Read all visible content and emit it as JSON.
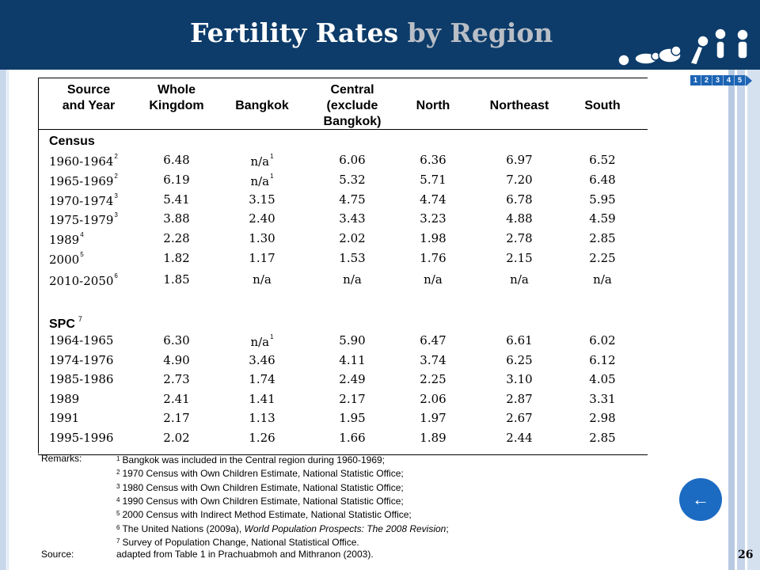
{
  "slide": {
    "title_main": "Fertility Rates",
    "title_sub": "by Region",
    "page_number": "26",
    "steps": [
      "1",
      "2",
      "3",
      "4",
      "5"
    ],
    "back_icon": "←"
  },
  "table": {
    "headers": [
      "Source\nand Year",
      "Whole\nKingdom",
      "Bangkok",
      "Central\n(exclude\nBangkok)",
      "North",
      "Northeast",
      "South"
    ],
    "sections": [
      {
        "label": "Census",
        "rows": [
          {
            "year": "1960-1964",
            "year_note": "2",
            "values": [
              "6.48",
              "n/a",
              "6.06",
              "6.36",
              "6.97",
              "6.52"
            ],
            "bkk_note": "1"
          },
          {
            "year": "1965-1969",
            "year_note": "2",
            "values": [
              "6.19",
              "n/a",
              "5.32",
              "5.71",
              "7.20",
              "6.48"
            ],
            "bkk_note": "1"
          },
          {
            "year": "1970-1974",
            "year_note": "3",
            "values": [
              "5.41",
              "3.15",
              "4.75",
              "4.74",
              "6.78",
              "5.95"
            ],
            "bkk_note": ""
          },
          {
            "year": "1975-1979",
            "year_note": "3",
            "values": [
              "3.88",
              "2.40",
              "3.43",
              "3.23",
              "4.88",
              "4.59"
            ],
            "bkk_note": ""
          },
          {
            "year": "1989",
            "year_note": "4",
            "values": [
              "2.28",
              "1.30",
              "2.02",
              "1.98",
              "2.78",
              "2.85"
            ],
            "bkk_note": ""
          },
          {
            "year": "2000",
            "year_note": "5",
            "values": [
              "1.82",
              "1.17",
              "1.53",
              "1.76",
              "2.15",
              "2.25"
            ],
            "bkk_note": ""
          },
          {
            "year": "2010-2050",
            "year_note": "6",
            "values": [
              "1.85",
              "n/a",
              "n/a",
              "n/a",
              "n/a",
              "n/a"
            ],
            "bkk_note": ""
          }
        ]
      },
      {
        "label": "SPC",
        "label_note": "7",
        "rows": [
          {
            "year": "1964-1965",
            "year_note": "",
            "values": [
              "6.30",
              "n/a",
              "5.90",
              "6.47",
              "6.61",
              "6.02"
            ],
            "bkk_note": "1"
          },
          {
            "year": "1974-1976",
            "year_note": "",
            "values": [
              "4.90",
              "3.46",
              "4.11",
              "3.74",
              "6.25",
              "6.12"
            ],
            "bkk_note": ""
          },
          {
            "year": "1985-1986",
            "year_note": "",
            "values": [
              "2.73",
              "1.74",
              "2.49",
              "2.25",
              "3.10",
              "4.05"
            ],
            "bkk_note": ""
          },
          {
            "year": "1989",
            "year_note": "",
            "values": [
              "2.41",
              "1.41",
              "2.17",
              "2.06",
              "2.87",
              "3.31"
            ],
            "bkk_note": ""
          },
          {
            "year": "1991",
            "year_note": "",
            "values": [
              "2.17",
              "1.13",
              "1.95",
              "1.97",
              "2.67",
              "2.98"
            ],
            "bkk_note": ""
          },
          {
            "year": "1995-1996",
            "year_note": "",
            "values": [
              "2.02",
              "1.26",
              "1.66",
              "1.89",
              "2.44",
              "2.85"
            ],
            "bkk_note": ""
          }
        ]
      }
    ]
  },
  "remarks": {
    "label": "Remarks:",
    "items": [
      {
        "n": "1",
        "text": "Bangkok was included in the Central region during 1960-1969;"
      },
      {
        "n": "2",
        "text": "1970 Census with Own Children Estimate, National Statistic Office;"
      },
      {
        "n": "3",
        "text": "1980 Census with Own Children Estimate, National Statistic Office;"
      },
      {
        "n": "4",
        "text": "1990 Census with Own Children Estimate, National Statistic Office;"
      },
      {
        "n": "5",
        "text": "2000 Census with Indirect Method Estimate, National Statistic Office;"
      },
      {
        "n": "6",
        "text": "The United Nations (2009a), ",
        "italic": "World Population Prospects: The 2008 Revision",
        "tail": ";"
      },
      {
        "n": "7",
        "text": "Survey of Population Change, National Statistical Office."
      }
    ],
    "source_label": "Source:",
    "source_text": "adapted from Table 1 in Prachuabmoh and Mithranon (2003)."
  }
}
